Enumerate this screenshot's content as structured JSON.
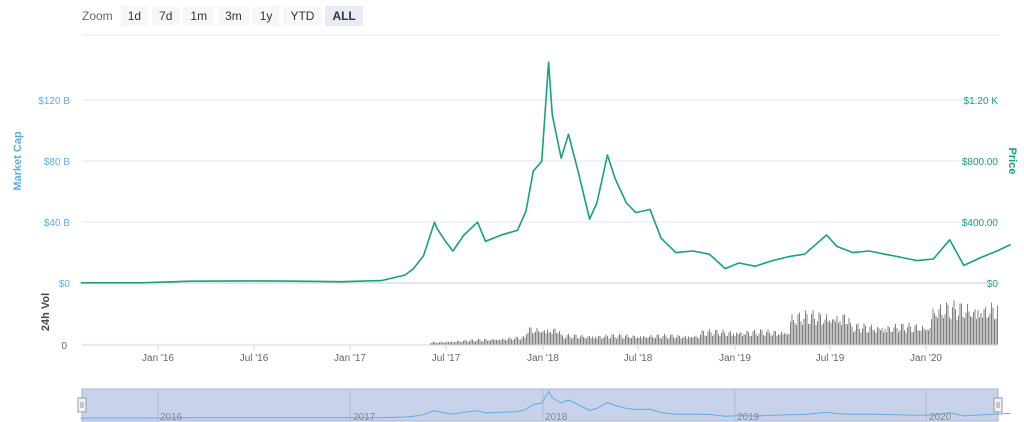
{
  "zoom": {
    "label": "Zoom",
    "buttons": [
      "1d",
      "7d",
      "1m",
      "3m",
      "1y",
      "YTD",
      "ALL"
    ],
    "active": "ALL"
  },
  "colors": {
    "price_line": "#16a085",
    "market_cap": "#5dade2",
    "volume": "#808080",
    "navigator_bg": "#c8d3eb"
  },
  "chart_data": {
    "type": "line",
    "x_tick_labels": [
      "Jan '16",
      "Jul '16",
      "Jan '17",
      "Jul '17",
      "Jan '18",
      "Jul '18",
      "Jan '19",
      "Jul '19",
      "Jan '20"
    ],
    "y_left": {
      "label": "Market Cap",
      "ticks": [
        "$0",
        "$40 B",
        "$80 B",
        "$120 B"
      ],
      "range": [
        0,
        140
      ]
    },
    "y_right": {
      "label": "Price",
      "ticks": [
        "$0",
        "$400.00",
        "$800.00",
        "$1.20 K"
      ],
      "range": [
        0,
        1400
      ]
    },
    "volume": {
      "label": "24h Vol",
      "ticks": [
        "0"
      ]
    },
    "navigator_labels": [
      "2016",
      "2017",
      "2018",
      "2019",
      "2020"
    ],
    "series": [
      {
        "name": "Price",
        "x": [
          "2015-08-07",
          "2015-12-01",
          "2016-03-01",
          "2016-06-15",
          "2016-09-01",
          "2016-12-15",
          "2017-03-01",
          "2017-04-15",
          "2017-05-01",
          "2017-05-20",
          "2017-06-10",
          "2017-06-15",
          "2017-07-01",
          "2017-07-15",
          "2017-08-05",
          "2017-08-31",
          "2017-09-15",
          "2017-10-15",
          "2017-11-15",
          "2017-12-01",
          "2017-12-15",
          "2017-12-31",
          "2018-01-13",
          "2018-01-20",
          "2018-02-06",
          "2018-02-20",
          "2018-03-10",
          "2018-04-01",
          "2018-04-15",
          "2018-05-05",
          "2018-05-20",
          "2018-06-10",
          "2018-06-28",
          "2018-07-25",
          "2018-08-15",
          "2018-09-12",
          "2018-10-15",
          "2018-11-15",
          "2018-12-15",
          "2019-01-10",
          "2019-02-10",
          "2019-03-15",
          "2019-04-15",
          "2019-05-15",
          "2019-06-26",
          "2019-07-15",
          "2019-08-15",
          "2019-09-15",
          "2019-10-15",
          "2019-11-15",
          "2019-12-15",
          "2020-01-15",
          "2020-02-15",
          "2020-03-13",
          "2020-04-15",
          "2020-05-15",
          "2020-06-10"
        ],
        "y": [
          1,
          1,
          11,
          13,
          12,
          8,
          15,
          50,
          90,
          170,
          380,
          340,
          260,
          200,
          300,
          380,
          260,
          300,
          330,
          450,
          700,
          760,
          1380,
          1050,
          780,
          930,
          700,
          400,
          500,
          800,
          650,
          500,
          440,
          460,
          280,
          190,
          200,
          180,
          90,
          125,
          105,
          140,
          165,
          180,
          300,
          230,
          190,
          200,
          180,
          160,
          140,
          150,
          270,
          110,
          160,
          200,
          240
        ]
      }
    ]
  }
}
